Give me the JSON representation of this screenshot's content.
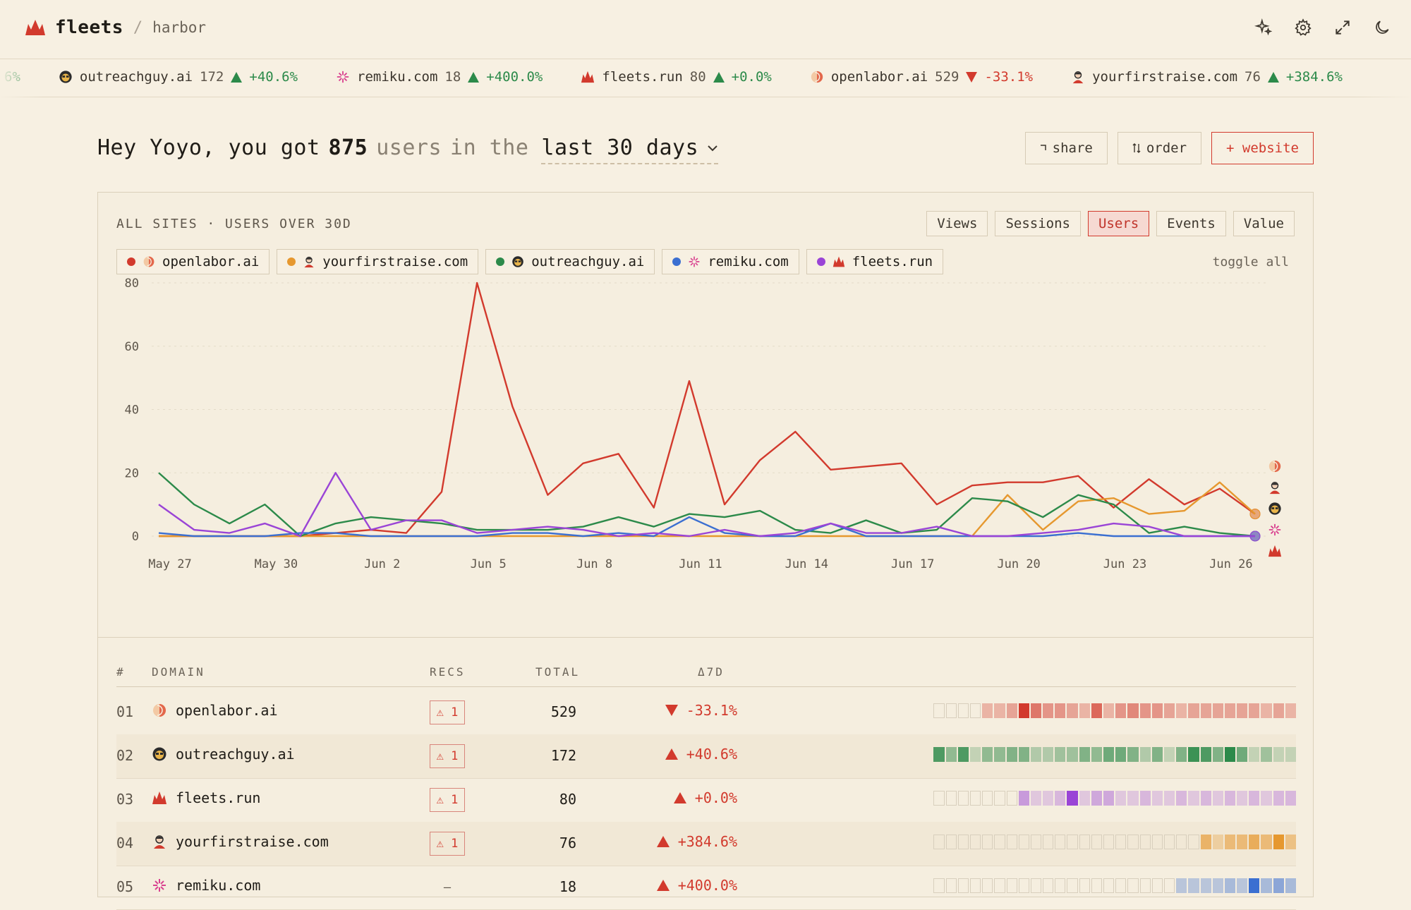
{
  "header": {
    "brand": "fleets",
    "separator": "/",
    "workspace": "harbor"
  },
  "ticker": [
    {
      "name": "",
      "value": "",
      "delta": "6%",
      "dir": "up",
      "icon": "none"
    },
    {
      "name": "outreachguy.ai",
      "value": "172",
      "delta": "+40.6%",
      "dir": "up",
      "icon": "outreachguy"
    },
    {
      "name": "remiku.com",
      "value": "18",
      "delta": "+400.0%",
      "dir": "up",
      "icon": "remiku"
    },
    {
      "name": "fleets.run",
      "value": "80",
      "delta": "+0.0%",
      "dir": "up",
      "icon": "fleets"
    },
    {
      "name": "openlabor.ai",
      "value": "529",
      "delta": "-33.1%",
      "dir": "down",
      "icon": "openlabor"
    },
    {
      "name": "yourfirstraise.com",
      "value": "76",
      "delta": "+384.6%",
      "dir": "up",
      "icon": "yourfirstraise"
    }
  ],
  "headline": {
    "greeting": "Hey Yoyo, you got",
    "count": "875",
    "users_word": "users",
    "in_the": "in the",
    "range": "last 30 days"
  },
  "actions": {
    "share": "share",
    "order": "order",
    "website": "+ website"
  },
  "panel": {
    "title": "ALL SITES · USERS OVER 30D",
    "toggle_all": "toggle all",
    "tabs": [
      "Views",
      "Sessions",
      "Users",
      "Events",
      "Value"
    ],
    "active_tab": "Users"
  },
  "legend": [
    {
      "name": "openlabor.ai",
      "color": "#d23a2d",
      "icon": "openlabor"
    },
    {
      "name": "yourfirstraise.com",
      "color": "#e6982f",
      "icon": "yourfirstraise"
    },
    {
      "name": "outreachguy.ai",
      "color": "#2c8a4a",
      "icon": "outreachguy"
    },
    {
      "name": "remiku.com",
      "color": "#3b6fd1",
      "icon": "remiku"
    },
    {
      "name": "fleets.run",
      "color": "#9a44d6",
      "icon": "fleets"
    }
  ],
  "chart_data": {
    "type": "line",
    "x_tick_labels": [
      "May 27",
      "May 30",
      "Jun 2",
      "Jun 5",
      "Jun 8",
      "Jun 11",
      "Jun 14",
      "Jun 17",
      "Jun 20",
      "Jun 23",
      "Jun 26"
    ],
    "x_tick_index": [
      0,
      3,
      6,
      9,
      12,
      15,
      18,
      21,
      24,
      27,
      30
    ],
    "y_ticks": [
      0,
      20,
      40,
      60,
      80
    ],
    "ylim": [
      0,
      80
    ],
    "series": [
      {
        "name": "openlabor.ai",
        "color": "#d23a2d",
        "values": [
          0,
          0,
          0,
          0,
          0,
          1,
          2,
          1,
          14,
          80,
          41,
          13,
          23,
          26,
          9,
          49,
          10,
          24,
          33,
          21,
          22,
          23,
          10,
          16,
          17,
          17,
          19,
          9,
          18,
          10,
          15,
          7
        ]
      },
      {
        "name": "yourfirstraise.com",
        "color": "#e6982f",
        "values": [
          0,
          0,
          0,
          0,
          0,
          0,
          0,
          0,
          0,
          0,
          0,
          0,
          0,
          0,
          0,
          0,
          0,
          0,
          0,
          0,
          0,
          0,
          0,
          0,
          13,
          2,
          11,
          12,
          7,
          8,
          17,
          7
        ]
      },
      {
        "name": "outreachguy.ai",
        "color": "#2c8a4a",
        "values": [
          20,
          10,
          4,
          10,
          0,
          4,
          6,
          5,
          4,
          2,
          2,
          2,
          3,
          6,
          3,
          7,
          6,
          8,
          2,
          1,
          5,
          1,
          2,
          12,
          11,
          6,
          13,
          10,
          1,
          3,
          1,
          0
        ]
      },
      {
        "name": "remiku.com",
        "color": "#3b6fd1",
        "values": [
          1,
          0,
          0,
          0,
          1,
          1,
          0,
          0,
          0,
          0,
          1,
          1,
          0,
          1,
          0,
          6,
          1,
          0,
          0,
          4,
          0,
          0,
          0,
          0,
          0,
          0,
          1,
          0,
          0,
          0,
          0,
          0
        ]
      },
      {
        "name": "fleets.run",
        "color": "#9a44d6",
        "values": [
          10,
          2,
          1,
          4,
          0,
          20,
          2,
          5,
          5,
          1,
          2,
          3,
          2,
          0,
          1,
          0,
          2,
          0,
          1,
          4,
          1,
          1,
          3,
          0,
          0,
          1,
          2,
          4,
          3,
          0,
          0,
          0
        ]
      }
    ]
  },
  "table": {
    "headers": {
      "num": "#",
      "domain": "DOMAIN",
      "recs": "RECS",
      "total": "TOTAL",
      "delta": "Δ7D"
    },
    "rows": [
      {
        "num": "01",
        "domain": "openlabor.ai",
        "icon": "openlabor",
        "recs": "⚠ 1",
        "total": "529",
        "delta": "-33.1%",
        "dir": "down",
        "color": "#d23a2d",
        "heat": [
          0,
          0,
          0,
          0,
          0.2,
          0.2,
          0.3,
          1,
          0.6,
          0.4,
          0.4,
          0.3,
          0.2,
          0.7,
          0.2,
          0.4,
          0.5,
          0.4,
          0.4,
          0.3,
          0.2,
          0.3,
          0.3,
          0.3,
          0.3,
          0.3,
          0.3,
          0.2,
          0.3,
          0.2
        ]
      },
      {
        "num": "02",
        "domain": "outreachguy.ai",
        "icon": "outreachguy",
        "recs": "⚠ 1",
        "total": "172",
        "delta": "+40.6%",
        "dir": "up",
        "color": "#2c8a4a",
        "heat": [
          0.8,
          0.4,
          0.8,
          0.1,
          0.4,
          0.4,
          0.5,
          0.5,
          0.2,
          0.2,
          0.3,
          0.3,
          0.5,
          0.4,
          0.6,
          0.6,
          0.5,
          0.2,
          0.5,
          0.1,
          0.5,
          0.9,
          0.8,
          0.5,
          1,
          0.6,
          0.1,
          0.3,
          0.1,
          0.1
        ]
      },
      {
        "num": "03",
        "domain": "fleets.run",
        "icon": "fleets",
        "recs": "⚠ 1",
        "total": "80",
        "delta": "+0.0%",
        "dir": "up",
        "color": "#9a44d6",
        "heat": [
          0,
          0,
          0,
          0,
          0,
          0,
          0,
          0.4,
          0.1,
          0.1,
          0.2,
          1,
          0.1,
          0.3,
          0.3,
          0.1,
          0.1,
          0.2,
          0.1,
          0.1,
          0.2,
          0.1,
          0.2,
          0.1,
          0.2,
          0.1,
          0.2,
          0.1,
          0.2,
          0.2
        ]
      },
      {
        "num": "04",
        "domain": "yourfirstraise.com",
        "icon": "yourfirstraise",
        "recs": "⚠ 1",
        "total": "76",
        "delta": "+384.6%",
        "dir": "up",
        "color": "#e6982f",
        "heat": [
          0,
          0,
          0,
          0,
          0,
          0,
          0,
          0,
          0,
          0,
          0,
          0,
          0,
          0,
          0,
          0,
          0,
          0,
          0,
          0,
          0,
          0,
          0.6,
          0.2,
          0.5,
          0.5,
          0.7,
          0.5,
          1,
          0.4
        ]
      },
      {
        "num": "05",
        "domain": "remiku.com",
        "icon": "remiku",
        "recs": "—",
        "total": "18",
        "delta": "+400.0%",
        "dir": "up",
        "color": "#3b6fd1",
        "heat": [
          0,
          0,
          0,
          0,
          0,
          0,
          0,
          0,
          0,
          0,
          0,
          0,
          0,
          0,
          0,
          0,
          0,
          0,
          0,
          0,
          0.2,
          0.2,
          0.2,
          0.2,
          0.3,
          0.2,
          1,
          0.3,
          0.5,
          0.3
        ]
      }
    ]
  }
}
